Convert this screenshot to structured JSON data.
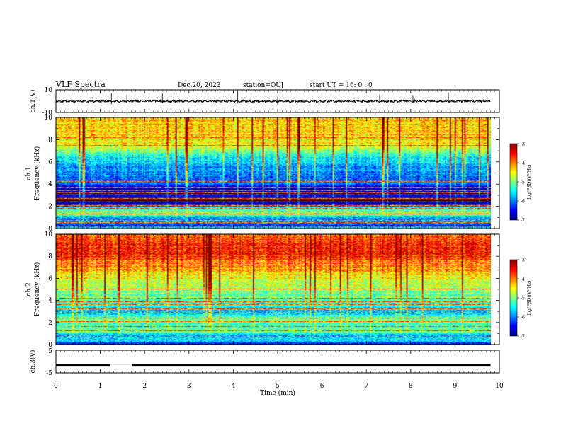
{
  "header": {
    "title": "VLF Spectra",
    "date": "Dec.20, 2023",
    "station": "station=OUJ",
    "start": "start UT =  16: 0 : 0"
  },
  "chart_data": [
    {
      "type": "line",
      "panel": "ch1-waveform",
      "ylabel": "ch.1(V)",
      "yticks": [
        "10",
        "-10"
      ],
      "ylim": [
        -10,
        10
      ],
      "xlim": [
        0,
        10
      ],
      "data_end_min": 9.8,
      "baseline_V": 0.0
    },
    {
      "type": "heatmap",
      "panel": "ch1-spectrogram",
      "ylabel_channel": "ch.1",
      "ylabel": "Frequency (kHz)",
      "ylim": [
        0,
        10
      ],
      "yticks": [
        "0",
        "2",
        "4",
        "6",
        "8",
        "10"
      ],
      "xlim": [
        0,
        10
      ],
      "data_end_min": 9.8,
      "colorbar": {
        "label": "log(PSD)(V²/Hz)",
        "range": [
          -7,
          -3
        ],
        "ticks": [
          "-3",
          "-4",
          "-5",
          "-6",
          "-7"
        ]
      },
      "freq_profile": [
        [
          0.0,
          0.45
        ],
        [
          0.2,
          0.1
        ],
        [
          0.5,
          0.3
        ],
        [
          0.9,
          0.25
        ],
        [
          1.2,
          0.45
        ],
        [
          1.5,
          0.5
        ],
        [
          1.9,
          0.35
        ],
        [
          2.2,
          0.05
        ],
        [
          2.6,
          0.0
        ],
        [
          3.0,
          0.12
        ],
        [
          3.6,
          0.05
        ],
        [
          4.0,
          0.22
        ],
        [
          5.0,
          0.25
        ],
        [
          6.0,
          0.33
        ],
        [
          7.0,
          0.5
        ],
        [
          7.5,
          0.62
        ],
        [
          8.5,
          0.66
        ],
        [
          10.0,
          0.68
        ]
      ],
      "flat_lines_kHz": [
        0.2,
        0.5,
        0.7,
        1.3,
        1.5,
        1.8,
        2.05,
        2.4,
        2.55,
        2.7,
        3.05,
        3.25,
        3.4,
        3.7,
        4.25,
        7.5,
        8.2,
        8.5
      ]
    },
    {
      "type": "heatmap",
      "panel": "ch2-spectrogram",
      "ylabel_channel": "ch.2",
      "ylabel": "Frequency (kHz)",
      "ylim": [
        0,
        10
      ],
      "yticks": [
        "0",
        "2",
        "4",
        "6",
        "8",
        "10"
      ],
      "xlim": [
        0,
        10
      ],
      "data_end_min": 9.8,
      "colorbar": {
        "label": "log(PSD)(V²/Hz)",
        "range": [
          -7,
          -3
        ],
        "ticks": [
          "-3",
          "-4",
          "-5",
          "-6",
          "-7"
        ]
      },
      "freq_profile": [
        [
          0.0,
          0.12
        ],
        [
          0.3,
          0.35
        ],
        [
          0.7,
          0.3
        ],
        [
          1.1,
          0.45
        ],
        [
          1.4,
          0.5
        ],
        [
          1.8,
          0.42
        ],
        [
          2.2,
          0.52
        ],
        [
          2.7,
          0.38
        ],
        [
          3.0,
          0.3
        ],
        [
          3.5,
          0.4
        ],
        [
          4.5,
          0.48
        ],
        [
          5.5,
          0.56
        ],
        [
          6.5,
          0.66
        ],
        [
          7.3,
          0.74
        ],
        [
          8.0,
          0.82
        ],
        [
          8.6,
          0.86
        ],
        [
          10.0,
          0.76
        ]
      ],
      "flat_lines_kHz": [
        0.7,
        1.25,
        1.6,
        2.05,
        2.4,
        2.9,
        3.2,
        3.6,
        3.9,
        4.2,
        5.05,
        6.8,
        7.2,
        7.5,
        8.0,
        8.2
      ]
    },
    {
      "type": "line",
      "panel": "ch3-signal",
      "ylabel": "ch.3(V)",
      "yticks": [
        "5",
        "-5"
      ],
      "ylim": [
        -5,
        5
      ],
      "xlim": [
        0,
        10
      ],
      "xlabel": "Time (min)",
      "xticks": [
        "0",
        "1",
        "2",
        "3",
        "4",
        "5",
        "6",
        "7",
        "8",
        "9",
        "10"
      ],
      "level_V": -1.6,
      "gap_min": [
        1.22,
        1.72
      ],
      "data_end_min": 9.8
    }
  ]
}
